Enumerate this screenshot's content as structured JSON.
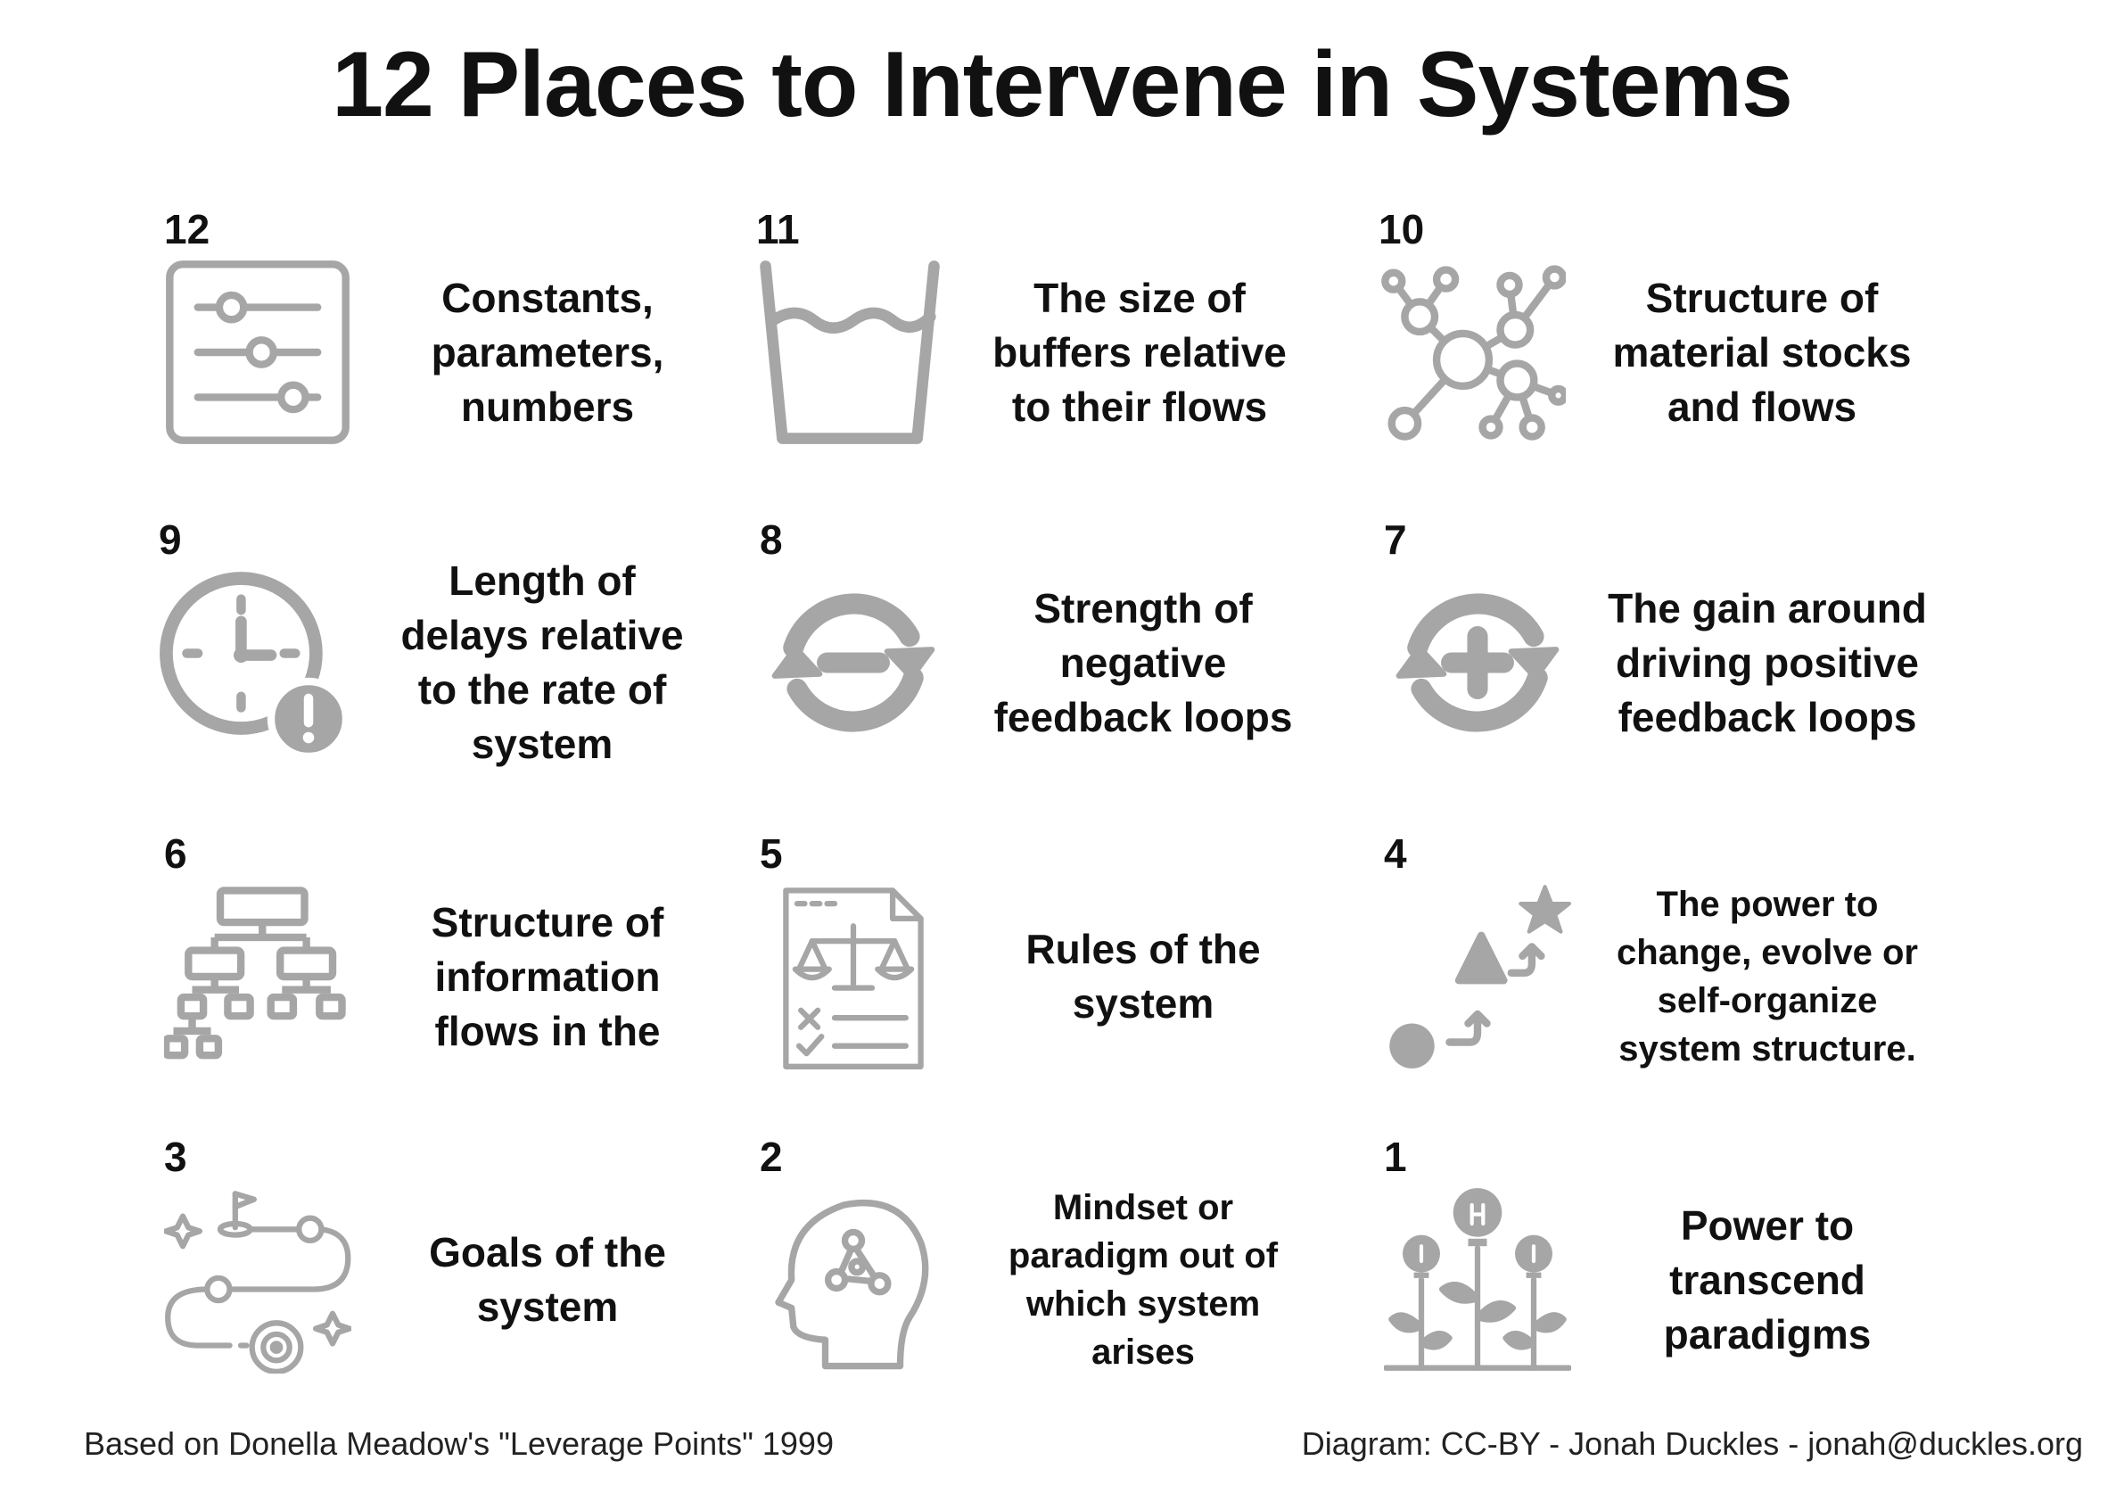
{
  "title": "12 Places to Intervene in Systems",
  "icon_color": "#a6a6a6",
  "items": [
    {
      "number": "12",
      "label": "Constants, parameters, numbers",
      "icon": "sliders-icon"
    },
    {
      "number": "11",
      "label": "The size of buffers relative to their flows",
      "icon": "water-glass-icon"
    },
    {
      "number": "10",
      "label": "Structure of material stocks and flows",
      "icon": "network-nodes-icon"
    },
    {
      "number": "9",
      "label": "Length of delays relative to the rate of system",
      "icon": "clock-alert-icon"
    },
    {
      "number": "8",
      "label": "Strength of negative feedback loops",
      "icon": "cycle-minus-icon"
    },
    {
      "number": "7",
      "label": "The gain around driving positive feedback loops",
      "icon": "cycle-plus-icon"
    },
    {
      "number": "6",
      "label": "Structure of information flows in the",
      "icon": "org-chart-icon"
    },
    {
      "number": "5",
      "label": "Rules of the system",
      "icon": "rules-document-icon"
    },
    {
      "number": "4",
      "label": "The power to change, evolve or self-organize system structure.",
      "icon": "evolution-shapes-icon"
    },
    {
      "number": "3",
      "label": "Goals of the system",
      "icon": "goal-path-icon"
    },
    {
      "number": "2",
      "label": "Mindset or paradigm out of which system arises",
      "icon": "head-mind-icon"
    },
    {
      "number": "1",
      "label": "Power to transcend paradigms",
      "icon": "growing-ideas-icon"
    }
  ],
  "footer": {
    "left": "Based on Donella Meadow's \"Leverage Points\" 1999",
    "right": "Diagram: CC-BY - Jonah Duckles - jonah@duckles.org"
  }
}
